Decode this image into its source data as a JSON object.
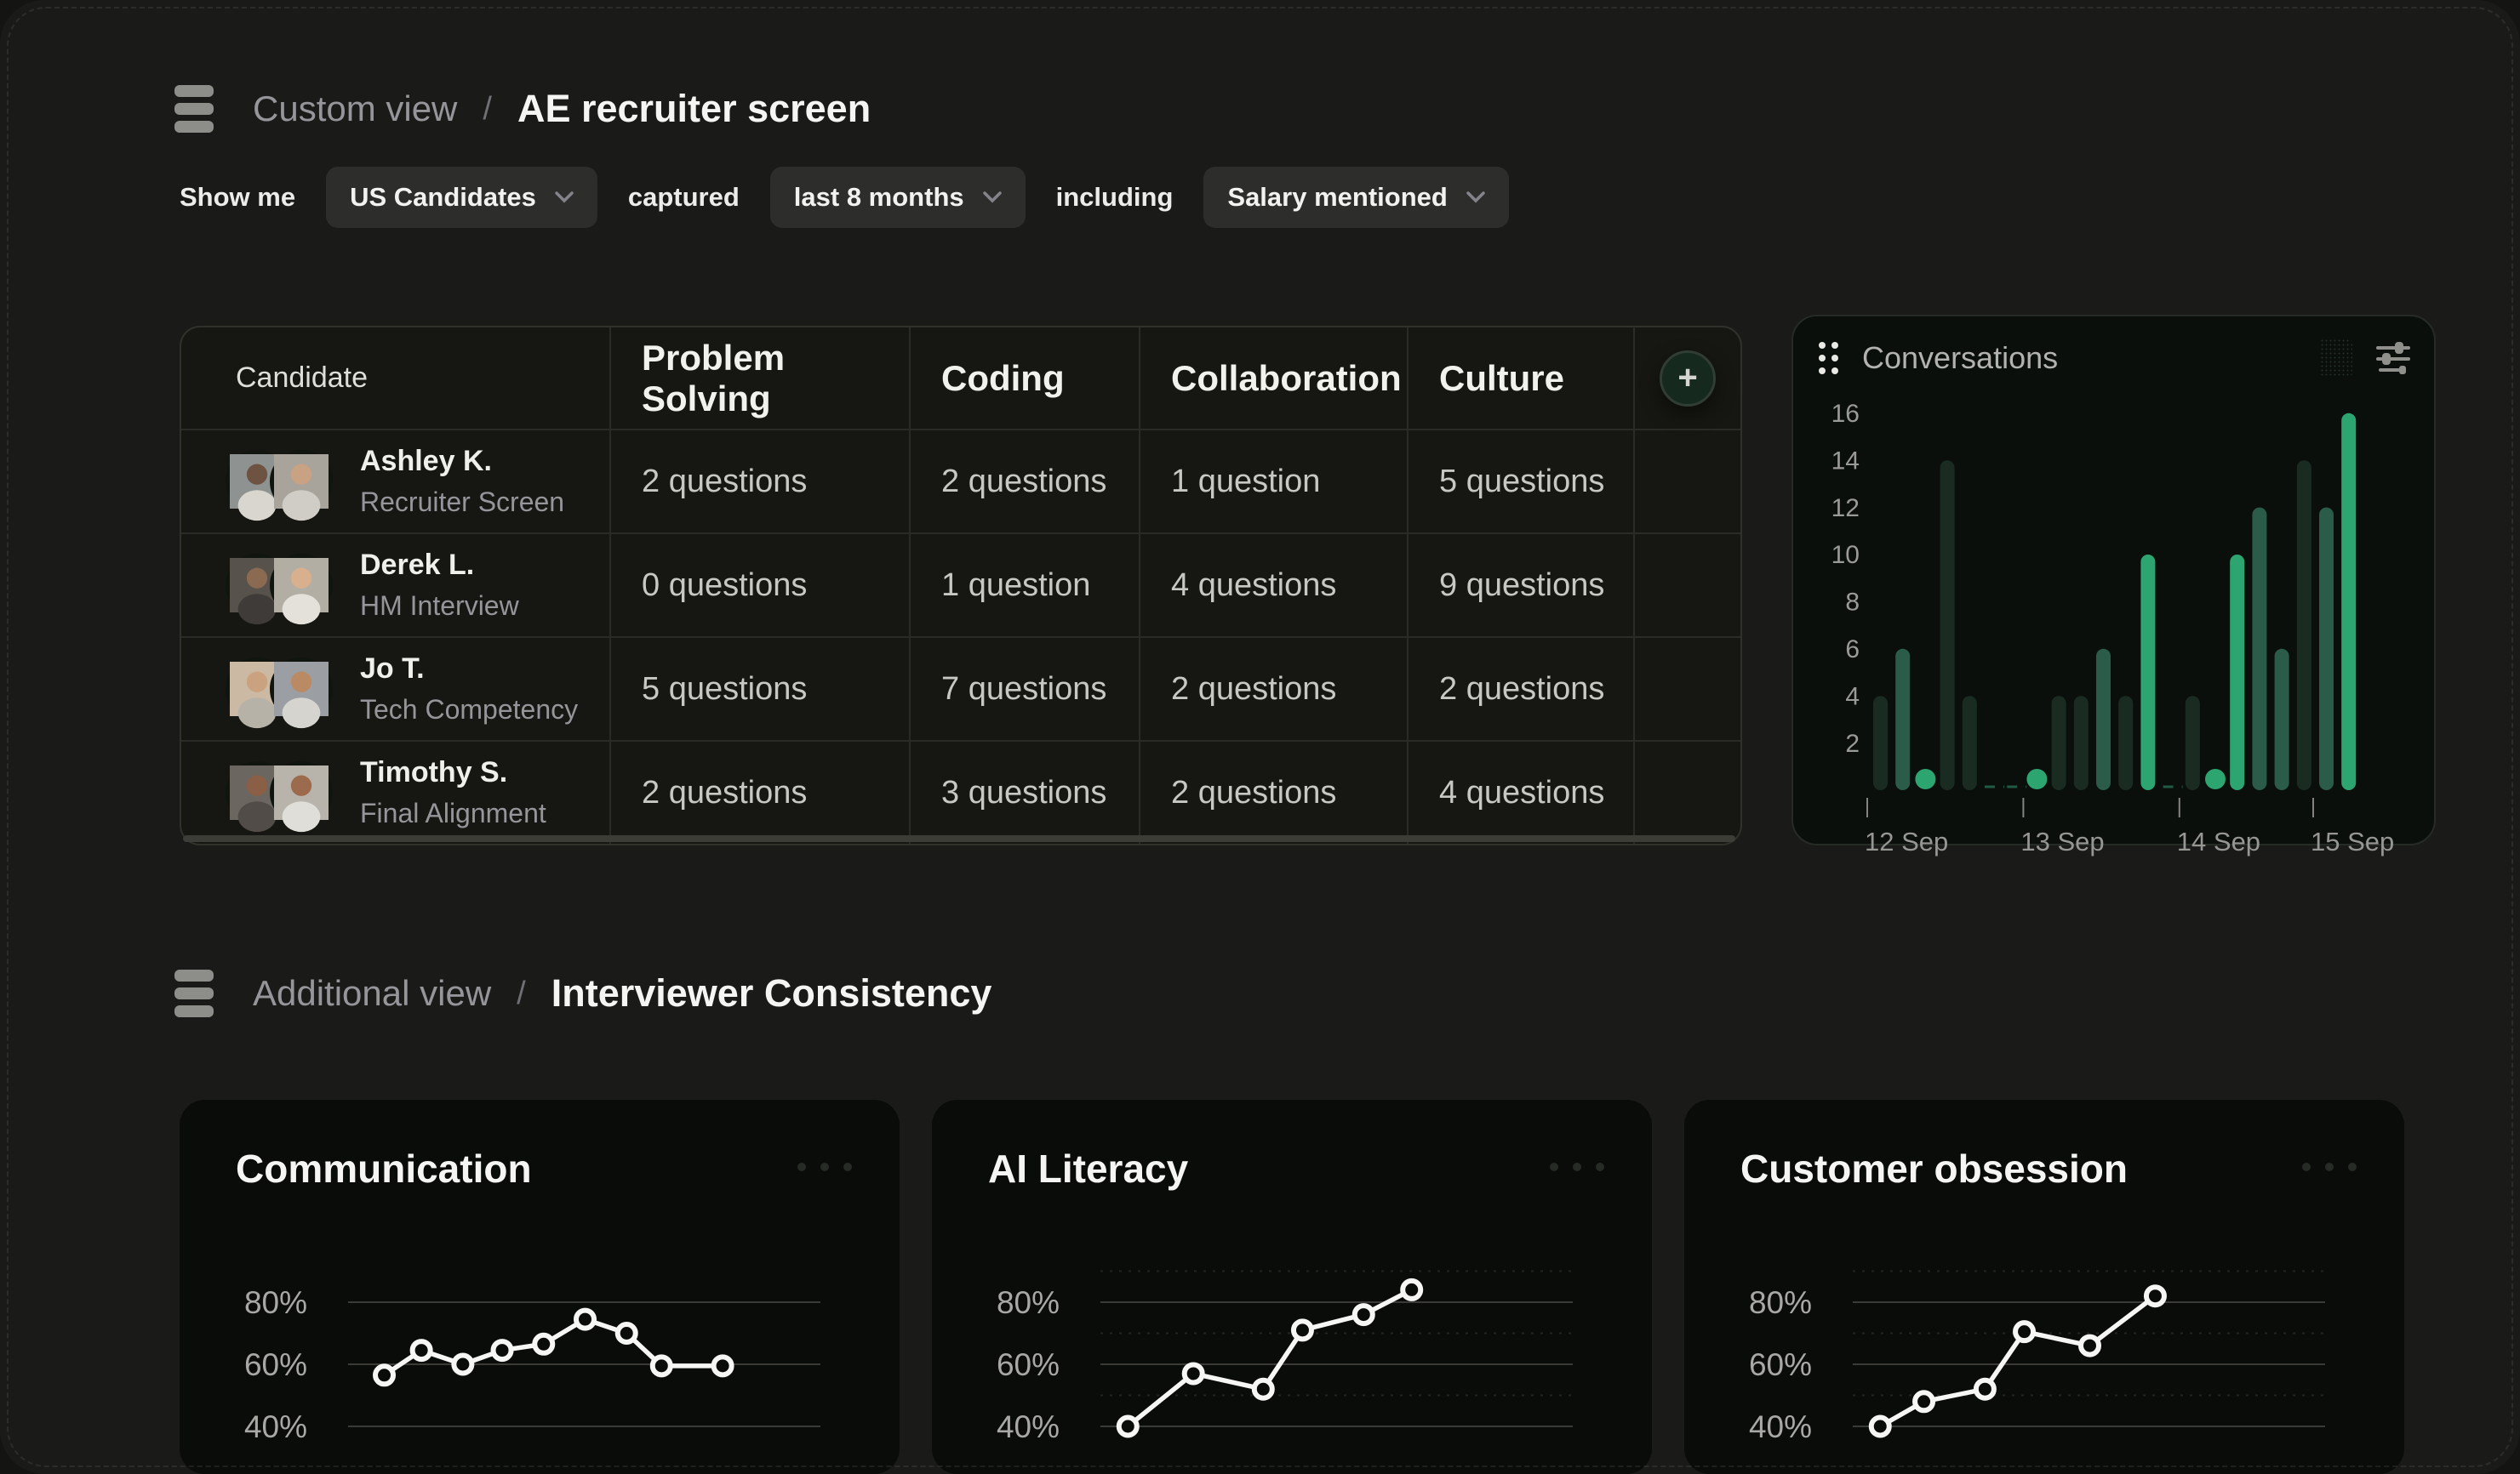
{
  "breadcrumb1": {
    "icon": "table-rows-icon",
    "view": "Custom view",
    "separator": "/",
    "title": "AE recruiter screen"
  },
  "filters": {
    "lead": "Show me",
    "dropdown1": {
      "value": "US Candidates",
      "icon": "chevron-down-icon"
    },
    "connector1": "captured",
    "dropdown2": {
      "value": "last 8 months",
      "icon": "chevron-down-icon"
    },
    "connector2": "including",
    "dropdown3": {
      "value": "Salary mentioned",
      "icon": "chevron-down-icon"
    }
  },
  "table": {
    "columns": [
      "Candidate",
      "Problem Solving",
      "Coding",
      "Collaboration",
      "Culture"
    ],
    "add_button": "+",
    "rows": [
      {
        "name": "Ashley K.",
        "stage": "Recruiter Screen",
        "cells": [
          "2 questions",
          "2 questions",
          "1 question",
          "5 questions"
        ]
      },
      {
        "name": "Derek L.",
        "stage": "HM Interview",
        "cells": [
          "0 questions",
          "1 question",
          "4 questions",
          "9 questions"
        ]
      },
      {
        "name": "Jo T.",
        "stage": "Tech Competency",
        "cells": [
          "5 questions",
          "7 questions",
          "2 questions",
          "2 questions"
        ]
      },
      {
        "name": "Timothy S.",
        "stage": "Final Alignment",
        "cells": [
          "2 questions",
          "3 questions",
          "2 questions",
          "4 questions"
        ]
      }
    ]
  },
  "conversations": {
    "title": "Conversations",
    "header_icons": [
      "drag-handle-icon",
      "bookmark-ghost-icon",
      "sliders-icon"
    ],
    "chart_data": {
      "type": "bar",
      "title": "Conversations",
      "ylabel_ticks": [
        16,
        14,
        12,
        10,
        8,
        6,
        4,
        2
      ],
      "ylim": [
        0,
        16
      ],
      "x_ticks": [
        "12 Sep",
        "13 Sep",
        "14 Sep",
        "15 Sep"
      ],
      "tick_slot_index": [
        0,
        7,
        14,
        20
      ],
      "bars": [
        {
          "value": 4,
          "tone": "dim"
        },
        {
          "value": 6,
          "tone": "mid"
        },
        {
          "value": 1,
          "tone": "dot"
        },
        {
          "value": 14,
          "tone": "dim"
        },
        {
          "value": 4,
          "tone": "dim"
        },
        {
          "value": 0,
          "tone": "dash"
        },
        {
          "value": 0,
          "tone": "dash"
        },
        {
          "value": 1,
          "tone": "dot"
        },
        {
          "value": 4,
          "tone": "dim"
        },
        {
          "value": 4,
          "tone": "dim"
        },
        {
          "value": 6,
          "tone": "mid"
        },
        {
          "value": 4,
          "tone": "dim"
        },
        {
          "value": 10,
          "tone": "bright"
        },
        {
          "value": 0,
          "tone": "dash"
        },
        {
          "value": 4,
          "tone": "dim"
        },
        {
          "value": 1,
          "tone": "dot"
        },
        {
          "value": 10,
          "tone": "bright"
        },
        {
          "value": 12,
          "tone": "mid"
        },
        {
          "value": 6,
          "tone": "mid"
        },
        {
          "value": 14,
          "tone": "dim"
        },
        {
          "value": 12,
          "tone": "mid"
        },
        {
          "value": 16,
          "tone": "bright"
        }
      ],
      "colors": {
        "dim": "#1a2c22",
        "mid": "#2b5b49",
        "bright": "#2da571",
        "dash": "#1f5a42"
      }
    }
  },
  "breadcrumb2": {
    "icon": "table-rows-icon",
    "view": "Additional view",
    "separator": "/",
    "title": "Interviewer Consistency"
  },
  "cards": [
    {
      "title": "Communication",
      "menu_icon": "ellipsis-icon",
      "chart_data": {
        "type": "line",
        "yticks": [
          "80%",
          "60%",
          "40%"
        ],
        "ytick_values": [
          80,
          60,
          40
        ],
        "minor_dotted": false,
        "line_color": "#f6f6f4",
        "points": [
          [
            0.04,
            56.5
          ],
          [
            0.125,
            64.5
          ],
          [
            0.22,
            60
          ],
          [
            0.31,
            64.5
          ],
          [
            0.405,
            66.5
          ],
          [
            0.5,
            74.5
          ],
          [
            0.595,
            70
          ],
          [
            0.675,
            59.5
          ],
          [
            0.815,
            59.5
          ]
        ]
      }
    },
    {
      "title": "AI Literacy",
      "menu_icon": "ellipsis-icon",
      "chart_data": {
        "type": "line",
        "yticks": [
          "80%",
          "60%",
          "40%"
        ],
        "ytick_values": [
          80,
          60,
          40
        ],
        "minor_dotted": true,
        "line_color": "#f6f6f4",
        "points": [
          [
            0.02,
            40
          ],
          [
            0.17,
            57
          ],
          [
            0.33,
            52
          ],
          [
            0.42,
            71
          ],
          [
            0.56,
            76
          ],
          [
            0.67,
            84
          ]
        ]
      }
    },
    {
      "title": "Customer obsession",
      "menu_icon": "ellipsis-icon",
      "chart_data": {
        "type": "line",
        "yticks": [
          "80%",
          "60%",
          "40%"
        ],
        "ytick_values": [
          80,
          60,
          40
        ],
        "minor_dotted": true,
        "line_color": "#f6f6f4",
        "points": [
          [
            0.02,
            40
          ],
          [
            0.12,
            48
          ],
          [
            0.26,
            52
          ],
          [
            0.35,
            70.5
          ],
          [
            0.5,
            66
          ],
          [
            0.65,
            82
          ]
        ]
      }
    }
  ]
}
